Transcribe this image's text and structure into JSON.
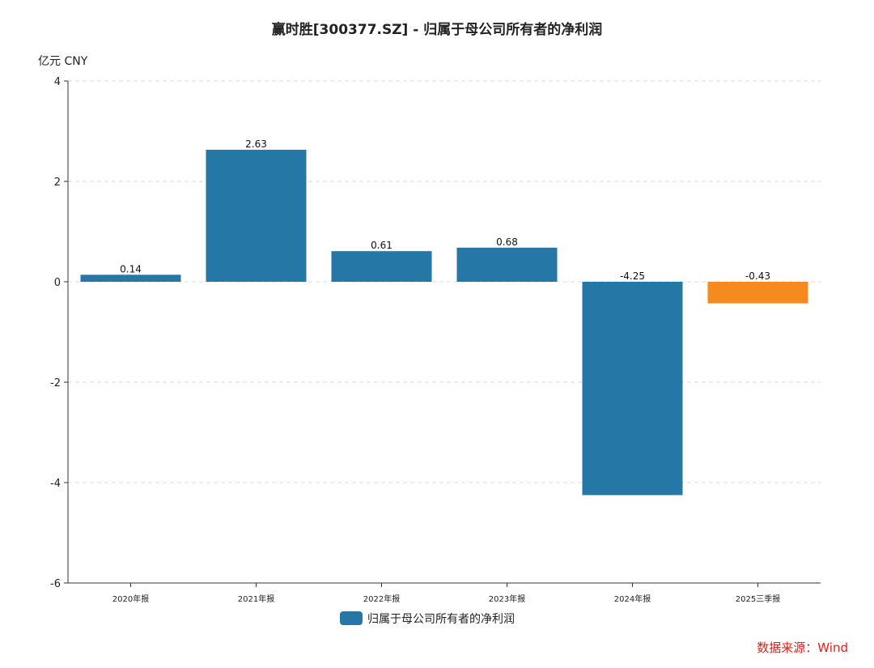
{
  "chart_data": {
    "type": "bar",
    "title": "赢时胜[300377.SZ] - 归属于母公司所有者的净利润",
    "unit_label": "亿元  CNY",
    "categories": [
      "2020年报",
      "2021年报",
      "2022年报",
      "2023年报",
      "2024年报",
      "2025三季报"
    ],
    "series": [
      {
        "name": "归属于母公司所有者的净利润",
        "values": [
          0.14,
          2.63,
          0.61,
          0.68,
          -4.25,
          -0.43
        ],
        "data_labels": [
          "0.14",
          "2.63",
          "0.61",
          "0.68",
          "-4.25",
          "-0.43"
        ],
        "bar_colors": [
          "#2577a6",
          "#2577a6",
          "#2577a6",
          "#2577a6",
          "#2577a6",
          "#f58a1f"
        ]
      }
    ],
    "ylim": [
      -6,
      4
    ],
    "yticks": [
      -6,
      -4,
      -2,
      0,
      2,
      4
    ],
    "ytick_labels": [
      "-6",
      "-4",
      "-2",
      "0",
      "2",
      "4"
    ],
    "grid": true,
    "legend_position": "bottom-center",
    "legend_color": "#2577a6"
  },
  "source_note": "数据来源：Wind"
}
